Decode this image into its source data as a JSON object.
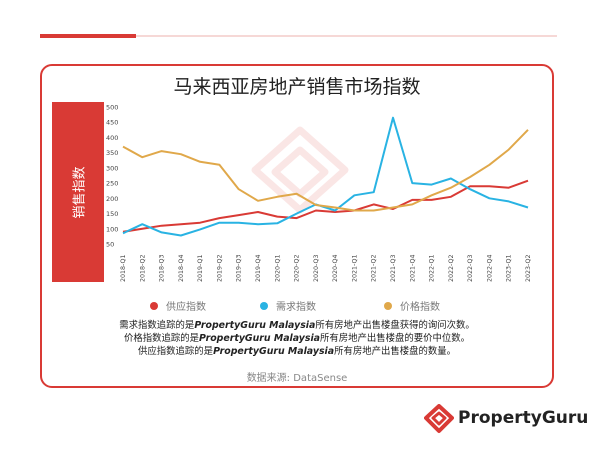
{
  "header": {
    "title": "马来西亚房地产销售市场指数"
  },
  "y_axis_label": "销售指数",
  "notes": {
    "line1_pre": "需求指数追踪的是",
    "line1_brand": "PropertyGuru Malaysia",
    "line1_post": "所有房地产出售楼盘获得的询问次数。",
    "line2_pre": "价格指数追踪的是",
    "line2_brand": "PropertyGuru Malaysia",
    "line2_post": "所有房地产出售楼盘的要价中位数。",
    "line3_pre": "供应指数追踪的是",
    "line3_brand": "PropertyGuru Malaysia",
    "line3_post": "所有房地产出售楼盘的数量。"
  },
  "source": "数据来源: DataSense",
  "logo": {
    "text": "PropertyGuru",
    "icon": "propertyguru-logo-icon"
  },
  "colors": {
    "accent": "#d93a35",
    "supply": "#d93a35",
    "demand": "#29b3e3",
    "price": "#e0a84a"
  },
  "chart_data": {
    "type": "line",
    "title": "马来西亚房地产销售市场指数",
    "ylabel": "销售指数",
    "xlabel": "",
    "ylim": [
      50,
      500
    ],
    "yticks": [
      50,
      100,
      150,
      200,
      250,
      300,
      350,
      400,
      450,
      500
    ],
    "grid": false,
    "legend_position": "bottom",
    "categories": [
      "2018-Q1",
      "2018-Q2",
      "2018-Q3",
      "2018-Q4",
      "2019-Q1",
      "2019-Q2",
      "2019-Q3",
      "2019-Q4",
      "2020-Q1",
      "2020-Q2",
      "2020-Q3",
      "2020-Q4",
      "2021-Q1",
      "2021-Q2",
      "2021-Q3",
      "2021-Q4",
      "2022-Q1",
      "2022-Q2",
      "2022-Q3",
      "2022-Q4",
      "2023-Q1",
      "2023-Q2"
    ],
    "series": [
      {
        "name": "供应指数",
        "color": "#d93a35",
        "values": [
          90,
          100,
          110,
          115,
          120,
          135,
          145,
          155,
          140,
          135,
          160,
          155,
          160,
          180,
          165,
          195,
          195,
          205,
          240,
          240,
          235,
          258
        ]
      },
      {
        "name": "需求指数",
        "color": "#29b3e3",
        "values": [
          85,
          115,
          88,
          78,
          98,
          120,
          120,
          115,
          118,
          150,
          180,
          160,
          210,
          220,
          465,
          250,
          245,
          265,
          230,
          200,
          190,
          170
        ]
      },
      {
        "name": "价格指数",
        "color": "#e0a84a",
        "values": [
          370,
          335,
          355,
          345,
          320,
          310,
          230,
          192,
          205,
          215,
          178,
          170,
          160,
          160,
          170,
          180,
          210,
          235,
          270,
          310,
          360,
          425
        ]
      }
    ]
  }
}
